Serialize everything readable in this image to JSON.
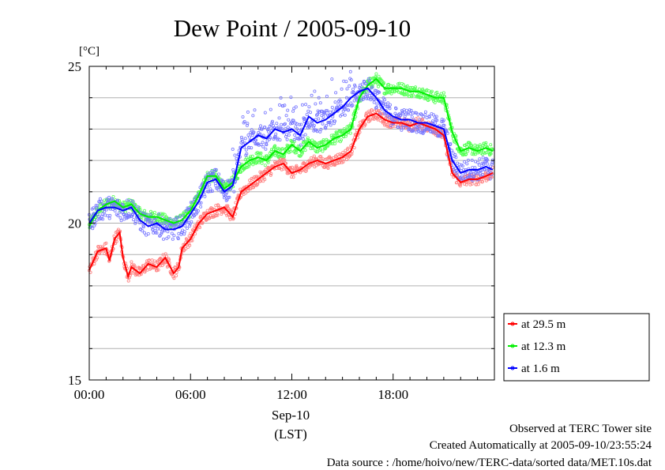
{
  "chart_data": {
    "type": "line",
    "title": "Dew Point / 2005-09-10",
    "ylabel": "[°C]",
    "xlabel_date": "Sep-10",
    "xlabel_unit": "(LST)",
    "xlim": [
      0,
      24
    ],
    "ylim": [
      15,
      25
    ],
    "x_ticks": [
      {
        "value": 0,
        "label": "00:00"
      },
      {
        "value": 6,
        "label": "06:00"
      },
      {
        "value": 12,
        "label": "12:00"
      },
      {
        "value": 18,
        "label": "18:00"
      }
    ],
    "y_ticks": [
      {
        "value": 15,
        "label": "15"
      },
      {
        "value": 20,
        "label": "20"
      },
      {
        "value": 25,
        "label": "25"
      }
    ],
    "minor_y_step": 1,
    "grid": true,
    "legend_position": "bottom-right-outside",
    "series": [
      {
        "name": "at 29.5 m",
        "color": "#ff0000",
        "scatter_color": "#ff8080",
        "x": [
          0,
          0.5,
          1,
          1.2,
          1.5,
          1.8,
          2,
          2.3,
          2.5,
          3,
          3.5,
          4,
          4.5,
          5,
          5.3,
          5.5,
          6,
          6.5,
          7,
          7.5,
          8,
          8.5,
          9,
          9.5,
          10,
          10.5,
          11,
          11.5,
          12,
          12.5,
          13,
          13.5,
          14,
          14.5,
          15,
          15.5,
          16,
          16.5,
          17,
          17.5,
          18,
          18.5,
          19,
          19.5,
          20,
          20.5,
          21,
          21.5,
          22,
          22.5,
          23,
          23.5,
          23.9
        ],
        "y": [
          18.5,
          19.1,
          19.2,
          18.8,
          19.5,
          19.7,
          18.9,
          18.3,
          18.6,
          18.4,
          18.7,
          18.6,
          18.9,
          18.4,
          18.6,
          19.2,
          19.5,
          20.0,
          20.3,
          20.4,
          20.5,
          20.2,
          21.0,
          21.2,
          21.4,
          21.6,
          21.8,
          21.9,
          21.6,
          21.7,
          21.9,
          22.0,
          21.9,
          22.0,
          22.1,
          22.3,
          23.0,
          23.4,
          23.5,
          23.3,
          23.2,
          23.2,
          23.1,
          23.2,
          23.1,
          23.0,
          22.8,
          21.6,
          21.3,
          21.4,
          21.4,
          21.5,
          21.6
        ]
      },
      {
        "name": "at 12.3 m",
        "color": "#00ee00",
        "scatter_color": "#55ff55",
        "x": [
          0,
          0.5,
          1,
          1.5,
          2,
          2.5,
          3,
          3.5,
          4,
          4.5,
          5,
          5.5,
          6,
          6.5,
          7,
          7.5,
          8,
          8.5,
          9,
          9.5,
          10,
          10.5,
          11,
          11.5,
          12,
          12.5,
          13,
          13.5,
          14,
          14.5,
          15,
          15.5,
          16,
          16.5,
          17,
          17.5,
          18,
          18.5,
          19,
          19.5,
          20,
          20.5,
          21,
          21.5,
          22,
          22.5,
          23,
          23.5,
          23.9
        ],
        "y": [
          19.9,
          20.4,
          20.6,
          20.7,
          20.5,
          20.6,
          20.3,
          20.2,
          20.2,
          20.1,
          20.0,
          20.1,
          20.4,
          20.9,
          21.5,
          21.5,
          21.1,
          21.3,
          21.8,
          22.0,
          22.1,
          22.0,
          22.3,
          22.2,
          22.5,
          22.3,
          22.6,
          22.4,
          22.5,
          22.7,
          22.8,
          23.0,
          24.0,
          24.4,
          24.6,
          24.3,
          24.3,
          24.3,
          24.2,
          24.2,
          24.1,
          24.0,
          24.0,
          22.9,
          22.3,
          22.4,
          22.3,
          22.4,
          22.3
        ]
      },
      {
        "name": "at 1.6 m",
        "color": "#0000ff",
        "scatter_color": "#7777ff",
        "x": [
          0,
          0.5,
          1,
          1.5,
          2,
          2.5,
          3,
          3.5,
          4,
          4.5,
          5,
          5.5,
          6,
          6.5,
          7,
          7.5,
          8,
          8.5,
          9,
          9.5,
          10,
          10.5,
          11,
          11.5,
          12,
          12.5,
          13,
          13.5,
          14,
          14.5,
          15,
          15.5,
          16,
          16.5,
          17,
          17.5,
          18,
          18.5,
          19,
          19.5,
          20,
          20.5,
          21,
          21.5,
          22,
          22.5,
          23,
          23.5,
          23.9
        ],
        "y": [
          20.0,
          20.4,
          20.5,
          20.5,
          20.4,
          20.5,
          20.1,
          19.9,
          20.0,
          19.8,
          19.8,
          19.9,
          20.3,
          20.7,
          21.3,
          21.4,
          21.0,
          21.2,
          22.4,
          22.6,
          22.8,
          22.7,
          23.0,
          22.9,
          23.0,
          22.8,
          23.4,
          23.2,
          23.3,
          23.5,
          23.7,
          24.0,
          24.2,
          24.3,
          24.0,
          23.6,
          23.4,
          23.3,
          23.3,
          23.2,
          23.2,
          23.1,
          23.0,
          22.0,
          21.6,
          21.7,
          21.7,
          21.8,
          21.7
        ]
      }
    ]
  },
  "footer": {
    "line1": "Observed at TERC Tower site",
    "line2": "Created Automatically at 2005-09-10/23:55:24",
    "line3": "Data source : /home/hoivo/new/TERC-data/sorted  data/MET.10s.dat"
  }
}
